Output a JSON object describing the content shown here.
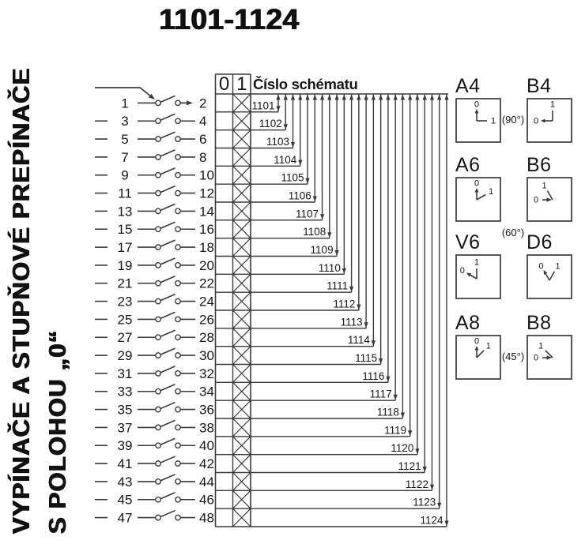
{
  "title": "1101-1124",
  "side_label": {
    "line1": "VYPÍNAČE A STUPŇOVÉ PREPÍNAČE",
    "line2": "S POLOHOU „0“"
  },
  "schema_table": {
    "state_headers": [
      "0",
      "1"
    ],
    "schema_header": "Číslo schématu",
    "rows": [
      {
        "left_terminal": "1",
        "right_terminal": "2",
        "schema": "1101",
        "state_0": "",
        "state_1": "X"
      },
      {
        "left_terminal": "3",
        "right_terminal": "4",
        "schema": "1102",
        "state_0": "",
        "state_1": "X"
      },
      {
        "left_terminal": "5",
        "right_terminal": "6",
        "schema": "1103",
        "state_0": "",
        "state_1": "X"
      },
      {
        "left_terminal": "7",
        "right_terminal": "8",
        "schema": "1104",
        "state_0": "",
        "state_1": "X"
      },
      {
        "left_terminal": "9",
        "right_terminal": "10",
        "schema": "1105",
        "state_0": "",
        "state_1": "X"
      },
      {
        "left_terminal": "11",
        "right_terminal": "12",
        "schema": "1106",
        "state_0": "",
        "state_1": "X"
      },
      {
        "left_terminal": "13",
        "right_terminal": "14",
        "schema": "1107",
        "state_0": "",
        "state_1": "X"
      },
      {
        "left_terminal": "15",
        "right_terminal": "16",
        "schema": "1108",
        "state_0": "",
        "state_1": "X"
      },
      {
        "left_terminal": "17",
        "right_terminal": "18",
        "schema": "1109",
        "state_0": "",
        "state_1": "X"
      },
      {
        "left_terminal": "19",
        "right_terminal": "20",
        "schema": "1110",
        "state_0": "",
        "state_1": "X"
      },
      {
        "left_terminal": "21",
        "right_terminal": "22",
        "schema": "1111",
        "state_0": "",
        "state_1": "X"
      },
      {
        "left_terminal": "23",
        "right_terminal": "24",
        "schema": "1112",
        "state_0": "",
        "state_1": "X"
      },
      {
        "left_terminal": "25",
        "right_terminal": "26",
        "schema": "1113",
        "state_0": "",
        "state_1": "X"
      },
      {
        "left_terminal": "27",
        "right_terminal": "28",
        "schema": "1114",
        "state_0": "",
        "state_1": "X"
      },
      {
        "left_terminal": "29",
        "right_terminal": "30",
        "schema": "1115",
        "state_0": "",
        "state_1": "X"
      },
      {
        "left_terminal": "31",
        "right_terminal": "32",
        "schema": "1116",
        "state_0": "",
        "state_1": "X"
      },
      {
        "left_terminal": "33",
        "right_terminal": "34",
        "schema": "1117",
        "state_0": "",
        "state_1": "X"
      },
      {
        "left_terminal": "35",
        "right_terminal": "36",
        "schema": "1118",
        "state_0": "",
        "state_1": "X"
      },
      {
        "left_terminal": "37",
        "right_terminal": "38",
        "schema": "1119",
        "state_0": "",
        "state_1": "X"
      },
      {
        "left_terminal": "39",
        "right_terminal": "40",
        "schema": "1120",
        "state_0": "",
        "state_1": "X"
      },
      {
        "left_terminal": "41",
        "right_terminal": "42",
        "schema": "1121",
        "state_0": "",
        "state_1": "X"
      },
      {
        "left_terminal": "43",
        "right_terminal": "44",
        "schema": "1122",
        "state_0": "",
        "state_1": "X"
      },
      {
        "left_terminal": "45",
        "right_terminal": "46",
        "schema": "1123",
        "state_0": "",
        "state_1": "X"
      },
      {
        "left_terminal": "47",
        "right_terminal": "48",
        "schema": "1124",
        "state_0": "",
        "state_1": "X"
      }
    ]
  },
  "position_diagrams": {
    "items": [
      {
        "code": "A4",
        "zero_label": "0",
        "one_label": "1",
        "zero_angle": 0,
        "one_angle": 90,
        "arrow_at": "outer"
      },
      {
        "code": "B4",
        "zero_label": "0",
        "one_label": "1",
        "zero_angle": 270,
        "one_angle": 0,
        "arrow_at": "outer"
      },
      {
        "code": "A6",
        "zero_label": "0",
        "one_label": "1",
        "zero_angle": 0,
        "one_angle": 60,
        "arrow_at": "outer"
      },
      {
        "code": "B6",
        "zero_label": "0",
        "one_label": "1",
        "zero_angle": 270,
        "one_angle": 330,
        "arrow_at": "vertex"
      },
      {
        "code": "V6",
        "zero_label": "0",
        "one_label": "1",
        "zero_angle": 300,
        "one_angle": 0,
        "arrow_at": "outer"
      },
      {
        "code": "D6",
        "zero_label": "0",
        "one_label": "1",
        "zero_angle": 330,
        "one_angle": 30,
        "arrow_at": "outer"
      },
      {
        "code": "A8",
        "zero_label": "0",
        "one_label": "1",
        "zero_angle": 0,
        "one_angle": 45,
        "arrow_at": "outer"
      },
      {
        "code": "B8",
        "zero_label": "0",
        "one_label": "1",
        "zero_angle": 270,
        "one_angle": 315,
        "arrow_at": "vertex"
      }
    ],
    "angle_labels": [
      {
        "text": "(90°)",
        "pair_row": 0,
        "placement": "between"
      },
      {
        "text": "(60°)",
        "pair_row": 1,
        "placement": "below"
      },
      {
        "text": "(45°)",
        "pair_row": 3,
        "placement": "between"
      }
    ]
  },
  "colors": {
    "ink": "#161616",
    "line": "#3a3a3a",
    "background": "#ffffff"
  }
}
